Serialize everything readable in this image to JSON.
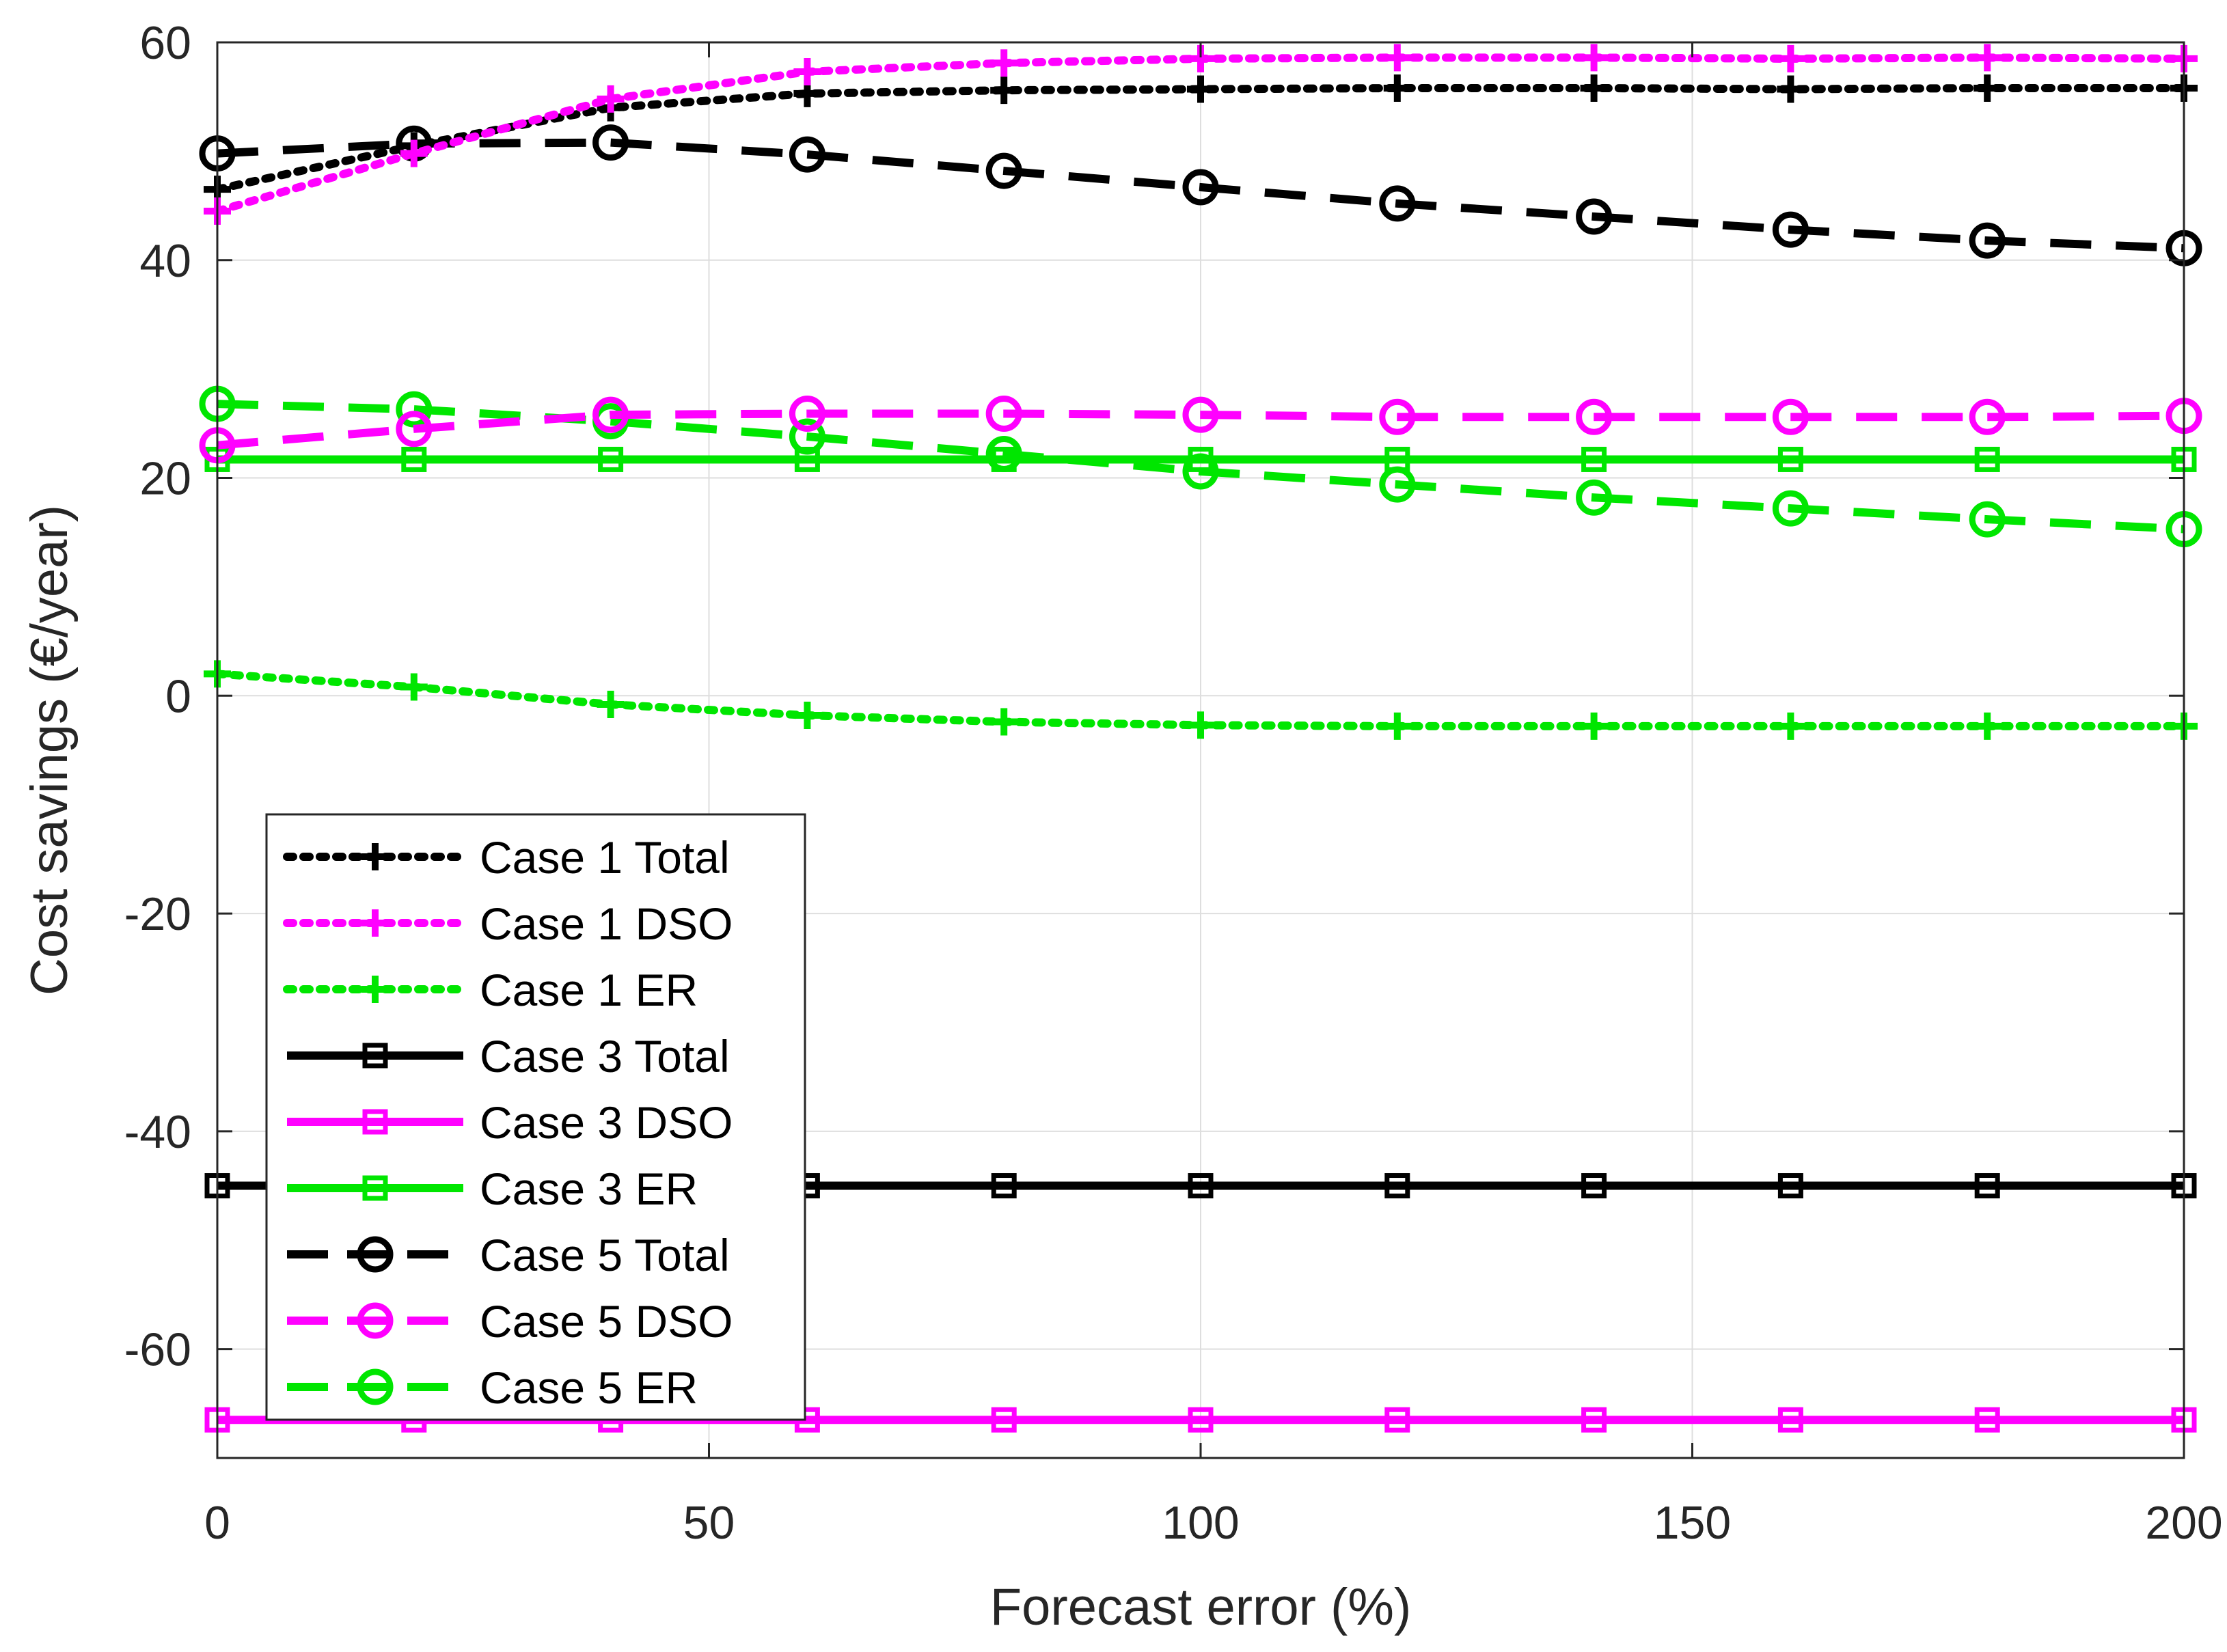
{
  "chart_data": {
    "type": "line",
    "title": "",
    "xlabel": "Forecast error (%)",
    "ylabel": "Cost savings (€/year)",
    "xlim": [
      0,
      200
    ],
    "ylim": [
      -70,
      60
    ],
    "xticks": [
      0,
      50,
      100,
      150,
      200
    ],
    "yticks": [
      -60,
      -40,
      -20,
      0,
      20,
      40,
      60
    ],
    "grid": true,
    "legend_position": "bottom-left",
    "x": [
      0,
      20,
      40,
      60,
      80,
      100,
      120,
      140,
      160,
      180,
      200
    ],
    "series": [
      {
        "name": "Case 1 Total",
        "color": "#000000",
        "style": "dotted",
        "marker": "plus",
        "values": [
          46.5,
          50.5,
          54.0,
          55.3,
          55.6,
          55.7,
          55.8,
          55.8,
          55.7,
          55.8,
          55.8
        ]
      },
      {
        "name": "Case 1 DSO",
        "color": "#ff00ff",
        "style": "dotted",
        "marker": "plus",
        "values": [
          44.5,
          49.8,
          54.8,
          57.3,
          58.1,
          58.5,
          58.6,
          58.6,
          58.5,
          58.6,
          58.5
        ]
      },
      {
        "name": "Case 1 ER",
        "color": "#00e600",
        "style": "dotted",
        "marker": "plus",
        "values": [
          2.0,
          0.8,
          -0.8,
          -1.8,
          -2.4,
          -2.7,
          -2.8,
          -2.8,
          -2.8,
          -2.8,
          -2.8
        ]
      },
      {
        "name": "Case 3 Total",
        "color": "#000000",
        "style": "solid",
        "marker": "square",
        "values": [
          -45,
          -45,
          -45,
          -45,
          -45,
          -45,
          -45,
          -45,
          -45,
          -45,
          -45
        ]
      },
      {
        "name": "Case 3 DSO",
        "color": "#ff00ff",
        "style": "solid",
        "marker": "square",
        "values": [
          -66.5,
          -66.5,
          -66.5,
          -66.5,
          -66.5,
          -66.5,
          -66.5,
          -66.5,
          -66.5,
          -66.5,
          -66.5
        ]
      },
      {
        "name": "Case 3 ER",
        "color": "#00e600",
        "style": "solid",
        "marker": "square",
        "values": [
          21.7,
          21.7,
          21.7,
          21.7,
          21.7,
          21.7,
          21.7,
          21.7,
          21.7,
          21.7,
          21.7
        ]
      },
      {
        "name": "Case 5 Total",
        "color": "#000000",
        "style": "dashed",
        "marker": "circle",
        "values": [
          49.8,
          50.7,
          50.8,
          49.7,
          48.2,
          46.7,
          45.2,
          44.0,
          42.8,
          41.8,
          41.1
        ]
      },
      {
        "name": "Case 5 DSO",
        "color": "#ff00ff",
        "style": "dashed",
        "marker": "circle",
        "values": [
          23.0,
          24.5,
          25.8,
          25.9,
          25.9,
          25.8,
          25.6,
          25.6,
          25.6,
          25.6,
          25.7
        ]
      },
      {
        "name": "Case 5 ER",
        "color": "#00e600",
        "style": "dashed",
        "marker": "circle",
        "values": [
          26.8,
          26.3,
          25.2,
          23.8,
          22.2,
          20.6,
          19.4,
          18.2,
          17.2,
          16.2,
          15.3
        ]
      }
    ]
  }
}
